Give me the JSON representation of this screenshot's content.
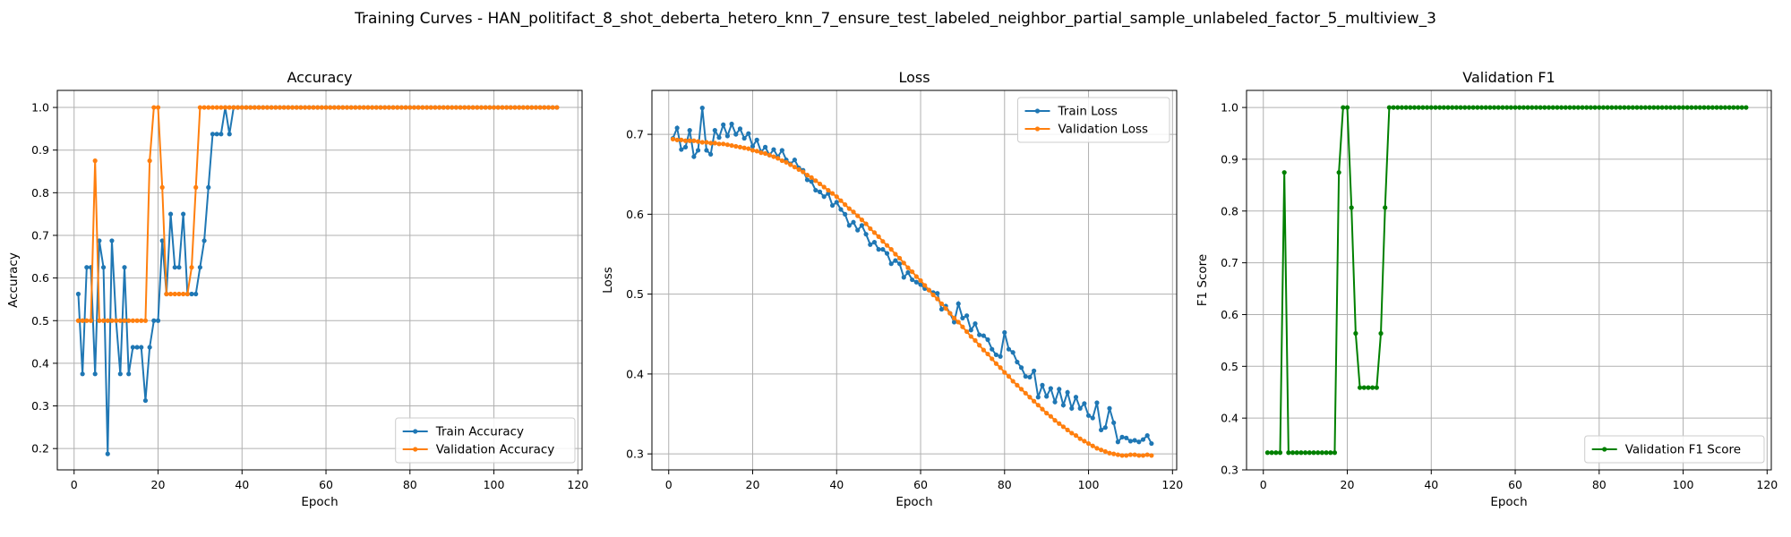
{
  "figure": {
    "suptitle": "Training Curves - HAN_politifact_8_shot_deberta_hetero_knn_7_ensure_test_labeled_neighbor_partial_sample_unlabeled_factor_5_multiview_3"
  },
  "chart_data": [
    {
      "type": "line",
      "title": "Accuracy",
      "xlabel": "Epoch",
      "ylabel": "Accuracy",
      "xlim": [
        -4,
        121
      ],
      "ylim": [
        0.15,
        1.04
      ],
      "xticks": [
        0,
        20,
        40,
        60,
        80,
        100,
        120
      ],
      "yticks": [
        0.2,
        0.3,
        0.4,
        0.5,
        0.6,
        0.7,
        0.8,
        0.9,
        1.0
      ],
      "ytick_format": 1,
      "grid": true,
      "legend": "lower-right",
      "series": [
        {
          "name": "Train Accuracy",
          "color": "#1f77b4",
          "x_start": 1,
          "values": [
            0.5625,
            0.375,
            0.625,
            0.625,
            0.375,
            0.6875,
            0.625,
            0.1875,
            0.6875,
            0.5,
            0.375,
            0.625,
            0.375,
            0.4375,
            0.4375,
            0.4375,
            0.3125,
            0.4375,
            0.5,
            0.5,
            0.6875,
            0.5625,
            0.75,
            0.625,
            0.625,
            0.75,
            0.5625,
            0.5625,
            0.5625,
            0.625,
            0.6875,
            0.8125,
            0.9375,
            0.9375,
            0.9375,
            1.0,
            0.9375,
            1.0,
            1.0,
            1.0,
            1.0,
            1.0,
            1.0,
            1.0,
            1.0,
            1.0,
            1.0,
            1.0,
            1.0,
            1.0,
            1.0,
            1.0,
            1.0,
            1.0,
            1.0,
            1.0,
            1.0,
            1.0,
            1.0,
            1.0,
            1.0,
            1.0,
            1.0,
            1.0,
            1.0,
            1.0,
            1.0,
            1.0,
            1.0,
            1.0,
            1.0,
            1.0,
            1.0,
            1.0,
            1.0,
            1.0,
            1.0,
            1.0,
            1.0,
            1.0,
            1.0,
            1.0,
            1.0,
            1.0,
            1.0,
            1.0,
            1.0,
            1.0,
            1.0,
            1.0,
            1.0,
            1.0,
            1.0,
            1.0,
            1.0,
            1.0,
            1.0,
            1.0,
            1.0,
            1.0,
            1.0,
            1.0,
            1.0,
            1.0,
            1.0,
            1.0,
            1.0,
            1.0,
            1.0,
            1.0,
            1.0,
            1.0,
            1.0,
            1.0,
            1.0
          ]
        },
        {
          "name": "Validation Accuracy",
          "color": "#ff7f0e",
          "x_start": 1,
          "values": [
            0.5,
            0.5,
            0.5,
            0.5,
            0.875,
            0.5,
            0.5,
            0.5,
            0.5,
            0.5,
            0.5,
            0.5,
            0.5,
            0.5,
            0.5,
            0.5,
            0.5,
            0.875,
            1.0,
            1.0,
            0.8125,
            0.5625,
            0.5625,
            0.5625,
            0.5625,
            0.5625,
            0.5625,
            0.625,
            0.8125,
            1.0,
            1.0,
            1.0,
            1.0,
            1.0,
            1.0,
            1.0,
            1.0,
            1.0,
            1.0,
            1.0,
            1.0,
            1.0,
            1.0,
            1.0,
            1.0,
            1.0,
            1.0,
            1.0,
            1.0,
            1.0,
            1.0,
            1.0,
            1.0,
            1.0,
            1.0,
            1.0,
            1.0,
            1.0,
            1.0,
            1.0,
            1.0,
            1.0,
            1.0,
            1.0,
            1.0,
            1.0,
            1.0,
            1.0,
            1.0,
            1.0,
            1.0,
            1.0,
            1.0,
            1.0,
            1.0,
            1.0,
            1.0,
            1.0,
            1.0,
            1.0,
            1.0,
            1.0,
            1.0,
            1.0,
            1.0,
            1.0,
            1.0,
            1.0,
            1.0,
            1.0,
            1.0,
            1.0,
            1.0,
            1.0,
            1.0,
            1.0,
            1.0,
            1.0,
            1.0,
            1.0,
            1.0,
            1.0,
            1.0,
            1.0,
            1.0,
            1.0,
            1.0,
            1.0,
            1.0,
            1.0,
            1.0,
            1.0,
            1.0,
            1.0,
            1.0
          ]
        }
      ]
    },
    {
      "type": "line",
      "title": "Loss",
      "xlabel": "Epoch",
      "ylabel": "Loss",
      "xlim": [
        -4,
        121
      ],
      "ylim": [
        0.28,
        0.755
      ],
      "xticks": [
        0,
        20,
        40,
        60,
        80,
        100,
        120
      ],
      "yticks": [
        0.3,
        0.4,
        0.5,
        0.6,
        0.7
      ],
      "ytick_format": 1,
      "grid": true,
      "legend": "upper-right",
      "series": [
        {
          "name": "Train Loss",
          "color": "#1f77b4",
          "x_start": 1,
          "values": [
            0.695,
            0.708,
            0.681,
            0.684,
            0.705,
            0.672,
            0.68,
            0.733,
            0.68,
            0.675,
            0.705,
            0.696,
            0.712,
            0.698,
            0.713,
            0.7,
            0.707,
            0.695,
            0.701,
            0.685,
            0.693,
            0.678,
            0.684,
            0.674,
            0.681,
            0.672,
            0.68,
            0.668,
            0.663,
            0.668,
            0.658,
            0.655,
            0.643,
            0.641,
            0.63,
            0.628,
            0.622,
            0.626,
            0.611,
            0.615,
            0.606,
            0.6,
            0.586,
            0.59,
            0.58,
            0.586,
            0.575,
            0.562,
            0.565,
            0.556,
            0.556,
            0.551,
            0.538,
            0.542,
            0.538,
            0.521,
            0.527,
            0.518,
            0.515,
            0.512,
            0.507,
            0.505,
            0.502,
            0.501,
            0.481,
            0.485,
            0.476,
            0.465,
            0.488,
            0.47,
            0.473,
            0.455,
            0.463,
            0.449,
            0.448,
            0.443,
            0.431,
            0.424,
            0.422,
            0.452,
            0.431,
            0.427,
            0.415,
            0.408,
            0.397,
            0.396,
            0.404,
            0.371,
            0.386,
            0.372,
            0.382,
            0.365,
            0.381,
            0.361,
            0.377,
            0.357,
            0.371,
            0.357,
            0.363,
            0.348,
            0.345,
            0.364,
            0.33,
            0.333,
            0.357,
            0.339,
            0.315,
            0.321,
            0.32,
            0.316,
            0.317,
            0.315,
            0.318,
            0.323,
            0.313
          ]
        },
        {
          "name": "Validation Loss",
          "color": "#ff7f0e",
          "x_start": 1,
          "values": [
            0.694,
            0.693,
            0.693,
            0.692,
            0.692,
            0.692,
            0.691,
            0.69,
            0.69,
            0.689,
            0.689,
            0.688,
            0.688,
            0.687,
            0.686,
            0.685,
            0.684,
            0.683,
            0.682,
            0.68,
            0.679,
            0.677,
            0.676,
            0.674,
            0.672,
            0.67,
            0.667,
            0.665,
            0.662,
            0.659,
            0.656,
            0.653,
            0.649,
            0.646,
            0.642,
            0.638,
            0.634,
            0.63,
            0.626,
            0.622,
            0.617,
            0.612,
            0.607,
            0.603,
            0.598,
            0.593,
            0.588,
            0.582,
            0.577,
            0.572,
            0.566,
            0.561,
            0.556,
            0.55,
            0.545,
            0.539,
            0.533,
            0.528,
            0.522,
            0.517,
            0.511,
            0.505,
            0.499,
            0.494,
            0.488,
            0.482,
            0.476,
            0.47,
            0.465,
            0.459,
            0.453,
            0.447,
            0.442,
            0.436,
            0.43,
            0.425,
            0.419,
            0.413,
            0.408,
            0.402,
            0.397,
            0.391,
            0.386,
            0.381,
            0.376,
            0.371,
            0.366,
            0.361,
            0.356,
            0.351,
            0.347,
            0.342,
            0.338,
            0.334,
            0.33,
            0.326,
            0.323,
            0.319,
            0.316,
            0.313,
            0.31,
            0.307,
            0.305,
            0.303,
            0.301,
            0.3,
            0.299,
            0.298,
            0.298,
            0.299,
            0.299,
            0.298,
            0.298,
            0.299,
            0.298
          ]
        }
      ]
    },
    {
      "type": "line",
      "title": "Validation F1",
      "xlabel": "Epoch",
      "ylabel": "F1 Score",
      "xlim": [
        -4,
        121
      ],
      "ylim": [
        0.3,
        1.033
      ],
      "xticks": [
        0,
        20,
        40,
        60,
        80,
        100,
        120
      ],
      "yticks": [
        0.3,
        0.4,
        0.5,
        0.6,
        0.7,
        0.8,
        0.9,
        1.0
      ],
      "ytick_format": 1,
      "grid": true,
      "legend": "lower-right",
      "series": [
        {
          "name": "Validation F1 Score",
          "color": "#008000",
          "x_start": 1,
          "values": [
            0.3333,
            0.3333,
            0.3333,
            0.3333,
            0.8745,
            0.3333,
            0.3333,
            0.3333,
            0.3333,
            0.3333,
            0.3333,
            0.3333,
            0.3333,
            0.3333,
            0.3333,
            0.3333,
            0.3333,
            0.8745,
            1.0,
            1.0,
            0.8065,
            0.5636,
            0.4589,
            0.4589,
            0.4589,
            0.4589,
            0.4589,
            0.5636,
            0.8065,
            1.0,
            1.0,
            1.0,
            1.0,
            1.0,
            1.0,
            1.0,
            1.0,
            1.0,
            1.0,
            1.0,
            1.0,
            1.0,
            1.0,
            1.0,
            1.0,
            1.0,
            1.0,
            1.0,
            1.0,
            1.0,
            1.0,
            1.0,
            1.0,
            1.0,
            1.0,
            1.0,
            1.0,
            1.0,
            1.0,
            1.0,
            1.0,
            1.0,
            1.0,
            1.0,
            1.0,
            1.0,
            1.0,
            1.0,
            1.0,
            1.0,
            1.0,
            1.0,
            1.0,
            1.0,
            1.0,
            1.0,
            1.0,
            1.0,
            1.0,
            1.0,
            1.0,
            1.0,
            1.0,
            1.0,
            1.0,
            1.0,
            1.0,
            1.0,
            1.0,
            1.0,
            1.0,
            1.0,
            1.0,
            1.0,
            1.0,
            1.0,
            1.0,
            1.0,
            1.0,
            1.0,
            1.0,
            1.0,
            1.0,
            1.0,
            1.0,
            1.0,
            1.0,
            1.0,
            1.0,
            1.0,
            1.0,
            1.0,
            1.0,
            1.0,
            1.0
          ]
        }
      ]
    }
  ]
}
